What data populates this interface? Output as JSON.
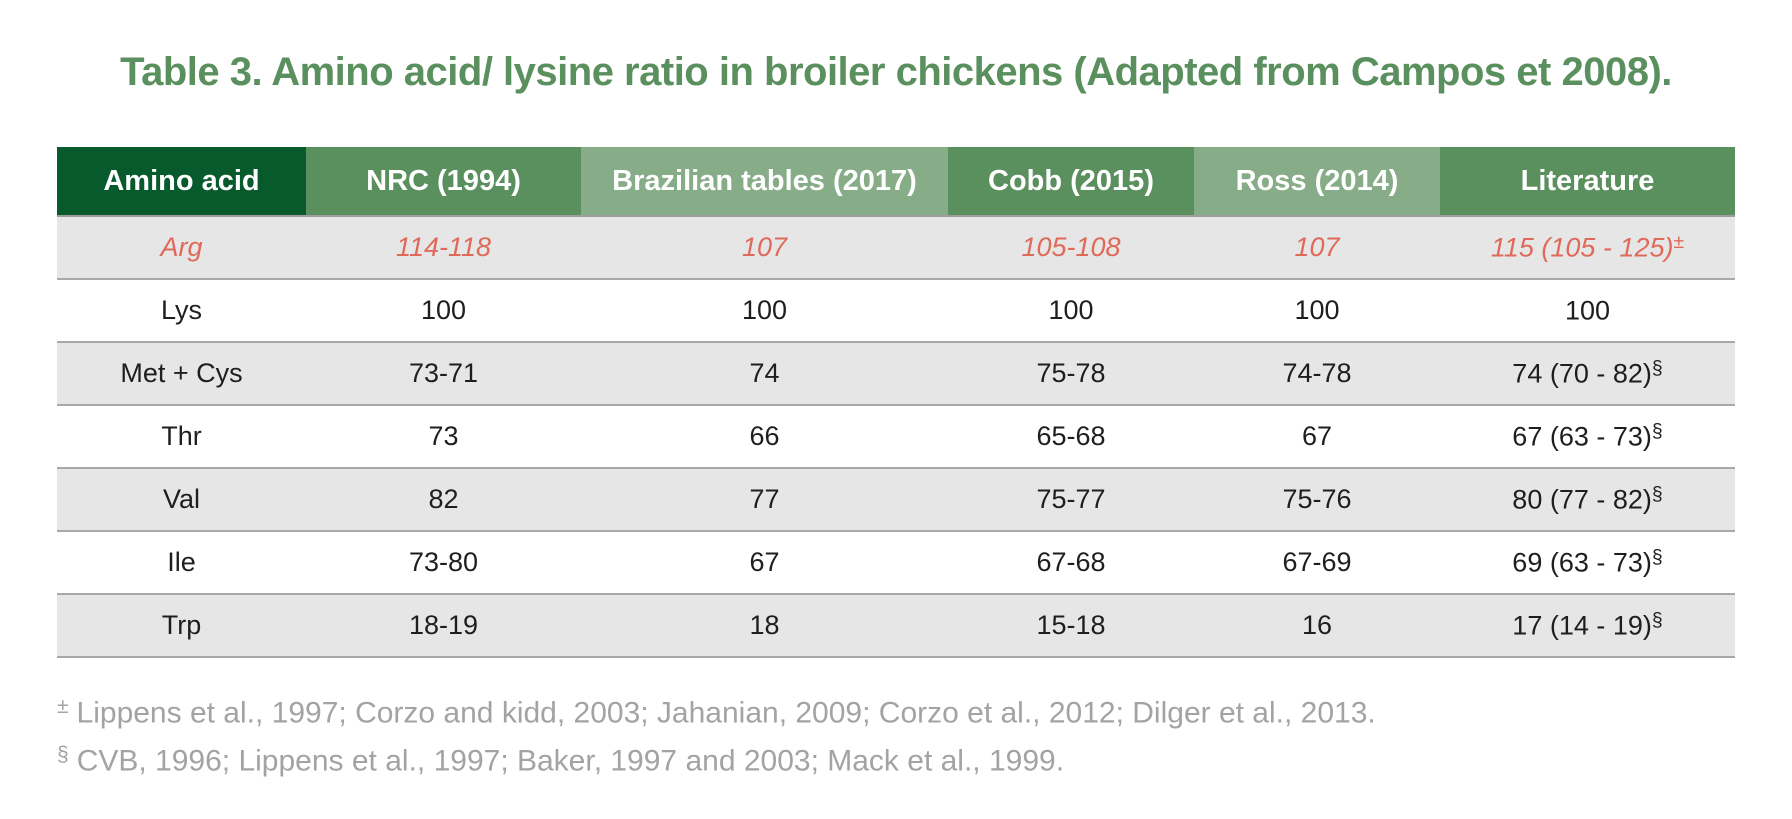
{
  "title": "Table 3. Amino acid/ lysine ratio in broiler chickens (Adapted from Campos et 2008).",
  "table": {
    "headers": [
      "Amino acid",
      "NRC (1994)",
      "Brazilian tables (2017)",
      "Cobb (2015)",
      "Ross (2014)",
      "Literature"
    ],
    "rows": [
      {
        "amino_acid": "Arg",
        "nrc": "114-118",
        "brazilian": "107",
        "cobb": "105-108",
        "ross": "107",
        "literature": "115 (105 - 125)",
        "literature_mark": "±"
      },
      {
        "amino_acid": "Lys",
        "nrc": "100",
        "brazilian": "100",
        "cobb": "100",
        "ross": "100",
        "literature": "100",
        "literature_mark": ""
      },
      {
        "amino_acid": "Met + Cys",
        "nrc": "73-71",
        "brazilian": "74",
        "cobb": "75-78",
        "ross": "74-78",
        "literature": "74 (70 - 82)",
        "literature_mark": "§"
      },
      {
        "amino_acid": "Thr",
        "nrc": "73",
        "brazilian": "66",
        "cobb": "65-68",
        "ross": "67",
        "literature": "67 (63 - 73)",
        "literature_mark": "§"
      },
      {
        "amino_acid": "Val",
        "nrc": "82",
        "brazilian": "77",
        "cobb": "75-77",
        "ross": "75-76",
        "literature": "80 (77 - 82)",
        "literature_mark": "§"
      },
      {
        "amino_acid": "Ile",
        "nrc": "73-80",
        "brazilian": "67",
        "cobb": "67-68",
        "ross": "67-69",
        "literature": "69 (63 - 73)",
        "literature_mark": "§"
      },
      {
        "amino_acid": "Trp",
        "nrc": "18-19",
        "brazilian": "18",
        "cobb": "15-18",
        "ross": "16",
        "literature": "17 (14 - 19)",
        "literature_mark": "§"
      }
    ]
  },
  "footnotes": [
    {
      "mark": "±",
      "text": "Lippens et al., 1997; Corzo and kidd, 2003; Jahanian, 2009; Corzo et al., 2012; Dilger et al., 2013."
    },
    {
      "mark": "§",
      "text": "CVB, 1996; Lippens et al., 1997; Baker, 1997 and 2003; Mack et al., 1999."
    }
  ],
  "colors": {
    "title": "#5a8f5e",
    "header_dark": "#075a2b",
    "header_mid": "#5a8f5e",
    "header_light": "#86ad87",
    "highlight_text": "#e06a5a",
    "row_shade": "#e6e6e6",
    "footnote_text": "#a3a3a3"
  }
}
